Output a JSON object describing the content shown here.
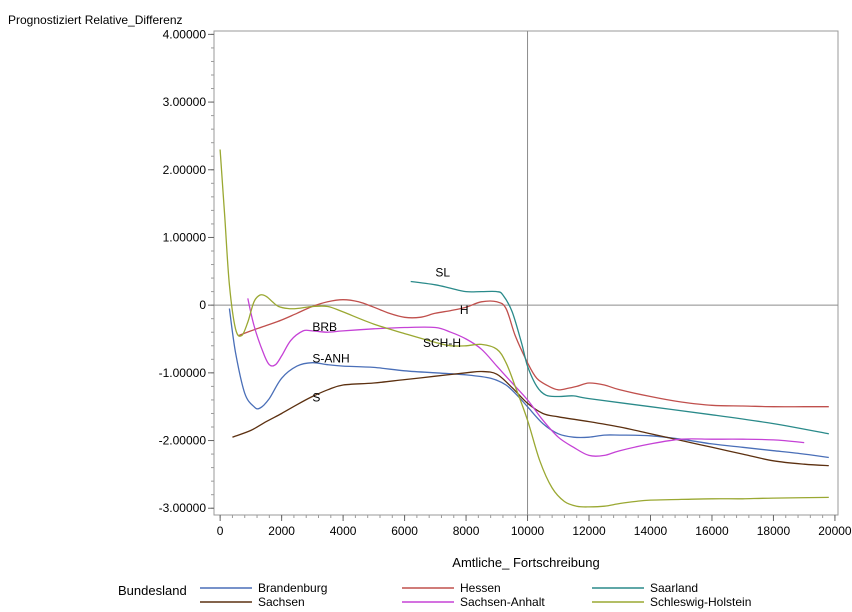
{
  "chart_data": {
    "type": "line",
    "title": "",
    "ylabel": "Prognostiziert Relative_Differenz",
    "xlabel": "Amtliche_ Fortschreibung",
    "xlim": [
      -200,
      20100
    ],
    "ylim": [
      -3.1,
      4.05
    ],
    "x_ticks": [
      0,
      2000,
      4000,
      6000,
      8000,
      10000,
      12000,
      14000,
      16000,
      18000,
      20000
    ],
    "x_tick_labels": [
      "0",
      "2000",
      "4000",
      "6000",
      "8000",
      "10000",
      "12000",
      "14000",
      "16000",
      "18000",
      "20000"
    ],
    "y_ticks": [
      4,
      3,
      2,
      1,
      0,
      -1,
      -2,
      -3
    ],
    "y_tick_labels": [
      "4.00000",
      "3.00000",
      "2.00000",
      "1.00000",
      "0",
      "-1.00000",
      "-2.00000",
      "-3.00000"
    ],
    "reference_lines": {
      "x": 10000,
      "y": 0
    },
    "grid": false,
    "legend": {
      "title": "Bundesland",
      "placement": "bottom"
    },
    "series": [
      {
        "name": "Brandenburg",
        "label": "S-ANH",
        "color": "#4a6fb8",
        "x": [
          300,
          500,
          800,
          1100,
          1300,
          1600,
          2000,
          2500,
          3000,
          3500,
          4000,
          5000,
          6000,
          7000,
          8000,
          8800,
          9300,
          9700,
          10000,
          10500,
          11000,
          11500,
          12000,
          12500,
          13000,
          14000,
          15000,
          16000,
          17000,
          18000,
          19000,
          19800
        ],
        "y": [
          -0.05,
          -0.7,
          -1.3,
          -1.5,
          -1.52,
          -1.38,
          -1.08,
          -0.9,
          -0.85,
          -0.88,
          -0.9,
          -0.92,
          -0.97,
          -1.0,
          -1.03,
          -1.08,
          -1.18,
          -1.35,
          -1.5,
          -1.75,
          -1.9,
          -1.95,
          -1.95,
          -1.92,
          -1.92,
          -1.93,
          -1.98,
          -2.05,
          -2.1,
          -2.15,
          -2.2,
          -2.25
        ]
      },
      {
        "name": "Hessen",
        "label": "H",
        "color": "#c0504d",
        "x": [
          600,
          1000,
          1500,
          2000,
          2500,
          3000,
          3500,
          4000,
          4500,
          5000,
          5500,
          6000,
          6500,
          7000,
          7500,
          8000,
          8500,
          9000,
          9300,
          9600,
          10000,
          10300,
          10700,
          11000,
          11300,
          11600,
          12000,
          12500,
          13000,
          14000,
          15000,
          16000,
          17000,
          18000,
          19000,
          19800
        ],
        "y": [
          -0.45,
          -0.38,
          -0.3,
          -0.22,
          -0.12,
          -0.02,
          0.05,
          0.08,
          0.05,
          -0.03,
          -0.12,
          -0.18,
          -0.18,
          -0.12,
          -0.08,
          -0.03,
          0.05,
          0.05,
          -0.05,
          -0.45,
          -0.85,
          -1.08,
          -1.2,
          -1.25,
          -1.23,
          -1.2,
          -1.15,
          -1.18,
          -1.25,
          -1.35,
          -1.43,
          -1.48,
          -1.49,
          -1.5,
          -1.5,
          -1.5
        ]
      },
      {
        "name": "Saarland",
        "label": "SL",
        "color": "#2a8a8a",
        "x": [
          6200,
          7000,
          7500,
          8000,
          8500,
          9000,
          9200,
          9500,
          9800,
          10000,
          10300,
          10600,
          11000,
          11500,
          12000,
          14000,
          16000,
          18000,
          19800
        ],
        "y": [
          0.35,
          0.3,
          0.25,
          0.2,
          0.2,
          0.2,
          0.15,
          -0.1,
          -0.55,
          -0.9,
          -1.2,
          -1.33,
          -1.35,
          -1.34,
          -1.38,
          -1.5,
          -1.62,
          -1.75,
          -1.9
        ]
      },
      {
        "name": "Sachsen",
        "label": "S",
        "color": "#5c3010",
        "x": [
          400,
          1000,
          1500,
          2000,
          2500,
          3000,
          3500,
          4000,
          5000,
          6000,
          7000,
          8000,
          8500,
          9000,
          9500,
          10000,
          10500,
          11000,
          12000,
          13000,
          14000,
          15000,
          16000,
          17000,
          18000,
          19000,
          19800
        ],
        "y": [
          -1.95,
          -1.85,
          -1.72,
          -1.6,
          -1.47,
          -1.35,
          -1.25,
          -1.18,
          -1.15,
          -1.1,
          -1.05,
          -1.0,
          -0.98,
          -1.02,
          -1.22,
          -1.45,
          -1.6,
          -1.65,
          -1.72,
          -1.8,
          -1.9,
          -2.0,
          -2.1,
          -2.2,
          -2.3,
          -2.35,
          -2.37
        ]
      },
      {
        "name": "Sachsen-Anhalt",
        "label": "BRB",
        "color": "#c542d6",
        "x": [
          900,
          1100,
          1400,
          1600,
          1800,
          2000,
          2300,
          2700,
          3000,
          3500,
          4000,
          5000,
          6000,
          7000,
          7500,
          8000,
          8500,
          9000,
          9500,
          10000,
          10500,
          11000,
          11500,
          12000,
          12500,
          13000,
          14000,
          15000,
          16000,
          17000,
          18000,
          19000
        ],
        "y": [
          0.1,
          -0.3,
          -0.7,
          -0.88,
          -0.88,
          -0.75,
          -0.52,
          -0.38,
          -0.38,
          -0.4,
          -0.38,
          -0.35,
          -0.33,
          -0.33,
          -0.4,
          -0.5,
          -0.65,
          -0.9,
          -1.15,
          -1.4,
          -1.7,
          -1.95,
          -2.1,
          -2.22,
          -2.22,
          -2.15,
          -2.05,
          -1.98,
          -1.98,
          -1.98,
          -1.99,
          -2.03
        ]
      },
      {
        "name": "Schleswig-Holstein",
        "label": "SCH-H",
        "color": "#9aa832",
        "x": [
          0,
          150,
          300,
          500,
          700,
          900,
          1100,
          1300,
          1500,
          1700,
          1900,
          2200,
          2500,
          3000,
          3500,
          4000,
          5000,
          6000,
          7000,
          7500,
          8000,
          8500,
          9000,
          9300,
          9600,
          10000,
          10400,
          10800,
          11200,
          11600,
          12000,
          12500,
          13000,
          13500,
          14000,
          15000,
          16000,
          17000,
          18000,
          19800
        ],
        "y": [
          2.3,
          1.3,
          0.3,
          -0.35,
          -0.45,
          -0.25,
          0.05,
          0.15,
          0.13,
          0.05,
          -0.02,
          -0.05,
          -0.05,
          -0.02,
          -0.02,
          -0.1,
          -0.28,
          -0.42,
          -0.55,
          -0.6,
          -0.6,
          -0.58,
          -0.65,
          -0.85,
          -1.2,
          -1.7,
          -2.3,
          -2.7,
          -2.9,
          -2.97,
          -2.98,
          -2.97,
          -2.93,
          -2.9,
          -2.88,
          -2.87,
          -2.86,
          -2.86,
          -2.85,
          -2.84
        ]
      }
    ],
    "annotations": [
      {
        "text": "SL",
        "x": 7000,
        "y": 0.42
      },
      {
        "text": "H",
        "x": 7800,
        "y": -0.13
      },
      {
        "text": "BRB",
        "x": 3000,
        "y": -0.38
      },
      {
        "text": "SCH-H",
        "x": 6600,
        "y": -0.62
      },
      {
        "text": "S-ANH",
        "x": 3000,
        "y": -0.85
      },
      {
        "text": "S",
        "x": 3000,
        "y": -1.42
      }
    ]
  }
}
